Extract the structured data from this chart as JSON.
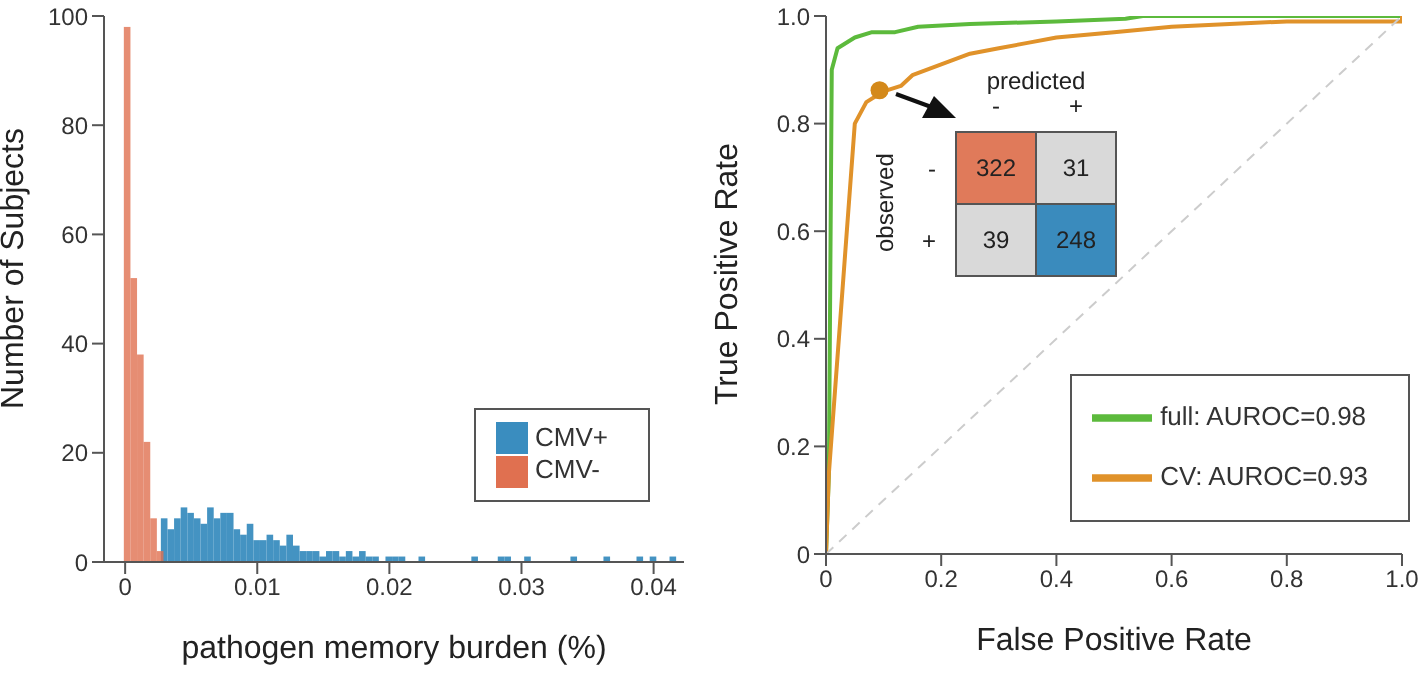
{
  "chart_data": [
    {
      "type": "histogram",
      "xlabel": "pathogen memory burden (%)",
      "ylabel": "Number of Subjects",
      "bins": [
        0,
        0.0005,
        0.001,
        0.0015,
        0.002,
        0.0025,
        0.003,
        0.0035,
        0.004,
        0.0045,
        0.005,
        0.0055,
        0.006,
        0.0065,
        0.007,
        0.0075,
        0.008,
        0.0085,
        0.009,
        0.0095,
        0.01,
        0.0105,
        0.011,
        0.0115,
        0.012,
        0.0125,
        0.013,
        0.0135,
        0.014,
        0.0145,
        0.015,
        0.0155,
        0.016,
        0.0165,
        0.017,
        0.0175,
        0.018,
        0.0185,
        0.019,
        0.0195,
        0.02,
        0.0205,
        0.021,
        0.0215,
        0.022,
        0.0225,
        0.023,
        0.0235,
        0.024,
        0.0245,
        0.025,
        0.0255,
        0.026,
        0.0265,
        0.027,
        0.0275,
        0.028,
        0.0285,
        0.029,
        0.0295,
        0.03,
        0.0305,
        0.031,
        0.0315,
        0.032,
        0.0325,
        0.033,
        0.0335,
        0.034,
        0.0345,
        0.035,
        0.0355,
        0.036,
        0.0365,
        0.037,
        0.0375,
        0.038,
        0.0385,
        0.039,
        0.0395,
        0.04,
        0.0405,
        0.041,
        0.0415,
        0.042
      ],
      "series": [
        {
          "name": "CMV+",
          "color": "#3a8dbf",
          "values": [
            0,
            0,
            null,
            null,
            null,
            8,
            6,
            8,
            10,
            9,
            8,
            7,
            10,
            8,
            9,
            9,
            6,
            5,
            7,
            4,
            4,
            5,
            4,
            3,
            5,
            3,
            2,
            2,
            2,
            1,
            2,
            2,
            1,
            2,
            1,
            2,
            1,
            1,
            0,
            1,
            1,
            1,
            0,
            0,
            1,
            0,
            0,
            0,
            0,
            0,
            0,
            0,
            1,
            0,
            0,
            0,
            1,
            1,
            0,
            0,
            1,
            0,
            0,
            0,
            0,
            0,
            0,
            1,
            0,
            0,
            0,
            0,
            1,
            0,
            0,
            0,
            0,
            1,
            0,
            1,
            0,
            0,
            1,
            0
          ]
        },
        {
          "name": "CMV-",
          "color": "#e07050",
          "values": [
            98,
            52,
            38,
            22,
            8,
            2,
            0,
            0,
            0,
            0,
            0,
            0,
            0,
            0,
            0,
            0,
            0,
            0,
            0,
            0,
            0,
            0,
            0,
            0,
            0,
            0,
            0,
            0,
            0,
            0,
            0,
            0,
            0,
            0,
            0,
            0,
            0,
            0,
            0,
            0,
            0,
            0,
            0,
            0,
            0,
            0,
            0,
            0,
            0,
            0,
            0,
            0,
            0,
            0,
            0,
            0,
            0,
            0,
            0,
            0,
            0,
            0,
            0,
            0,
            0,
            0,
            0,
            0,
            0,
            0,
            0,
            0,
            0,
            0,
            0,
            0,
            0,
            0,
            0,
            0,
            0,
            0,
            0,
            0
          ]
        }
      ],
      "xlim": [
        -0.0016,
        0.0423
      ],
      "xticks": [
        0,
        0.01,
        0.02,
        0.03,
        0.04
      ],
      "ylim": [
        0,
        100
      ],
      "yticks": [
        0,
        20,
        40,
        60,
        80,
        100
      ],
      "legend": "bottom right"
    },
    {
      "type": "line",
      "xlabel": "False Positive Rate",
      "ylabel": "True Positive Rate",
      "series": [
        {
          "name": "full: AUROC=0.98",
          "color": "#5cba3c",
          "x": [
            0,
            0.005,
            0.01,
            0.02,
            0.05,
            0.08,
            0.12,
            0.16,
            0.25,
            0.4,
            0.52,
            0.55,
            1
          ],
          "values": [
            0,
            0.15,
            0.9,
            0.94,
            0.96,
            0.97,
            0.97,
            0.98,
            0.985,
            0.99,
            0.995,
            1,
            1
          ]
        },
        {
          "name": "CV: AUROC=0.93",
          "color": "#e0922a",
          "x": [
            0,
            0.005,
            0.05,
            0.07,
            0.1,
            0.13,
            0.15,
            0.2,
            0.25,
            0.3,
            0.35,
            0.4,
            0.5,
            0.6,
            0.8,
            1,
            1
          ],
          "values": [
            0,
            0.15,
            0.8,
            0.84,
            0.86,
            0.87,
            0.89,
            0.91,
            0.93,
            0.94,
            0.95,
            0.96,
            0.97,
            0.98,
            0.99,
            0.99,
            1
          ]
        },
        {
          "type": "line",
          "color": "#cccccc",
          "line_style": "dashed",
          "x": [
            0,
            1
          ],
          "values": [
            0,
            1
          ]
        },
        {
          "type": "scatter",
          "color": "#d4891a",
          "marker": "circle",
          "x": [
            0.093
          ],
          "values": [
            0.862
          ]
        }
      ],
      "xlim": [
        0,
        1
      ],
      "xticks": [
        0,
        0.2,
        0.4,
        0.6,
        0.8,
        {
          "value": 1,
          "label": "1.0"
        }
      ],
      "ylim": [
        0,
        1
      ],
      "yticks": [
        0,
        0.2,
        0.4,
        0.6,
        0.8,
        {
          "value": 1,
          "label": "1.0"
        }
      ],
      "legend": "bottom right"
    },
    {
      "type": "heatmap",
      "xlabel": "predicted",
      "ylabel": "observed",
      "categories": [
        "-",
        "+"
      ],
      "y_categories": [
        "-",
        "+"
      ],
      "cells": [
        [
          322,
          31
        ],
        [
          39,
          248
        ]
      ],
      "colors": [
        "#e07a5a",
        "#d9d9d9",
        "#d9d9d9",
        "#3a8bbd"
      ],
      "data_labels": true
    }
  ]
}
